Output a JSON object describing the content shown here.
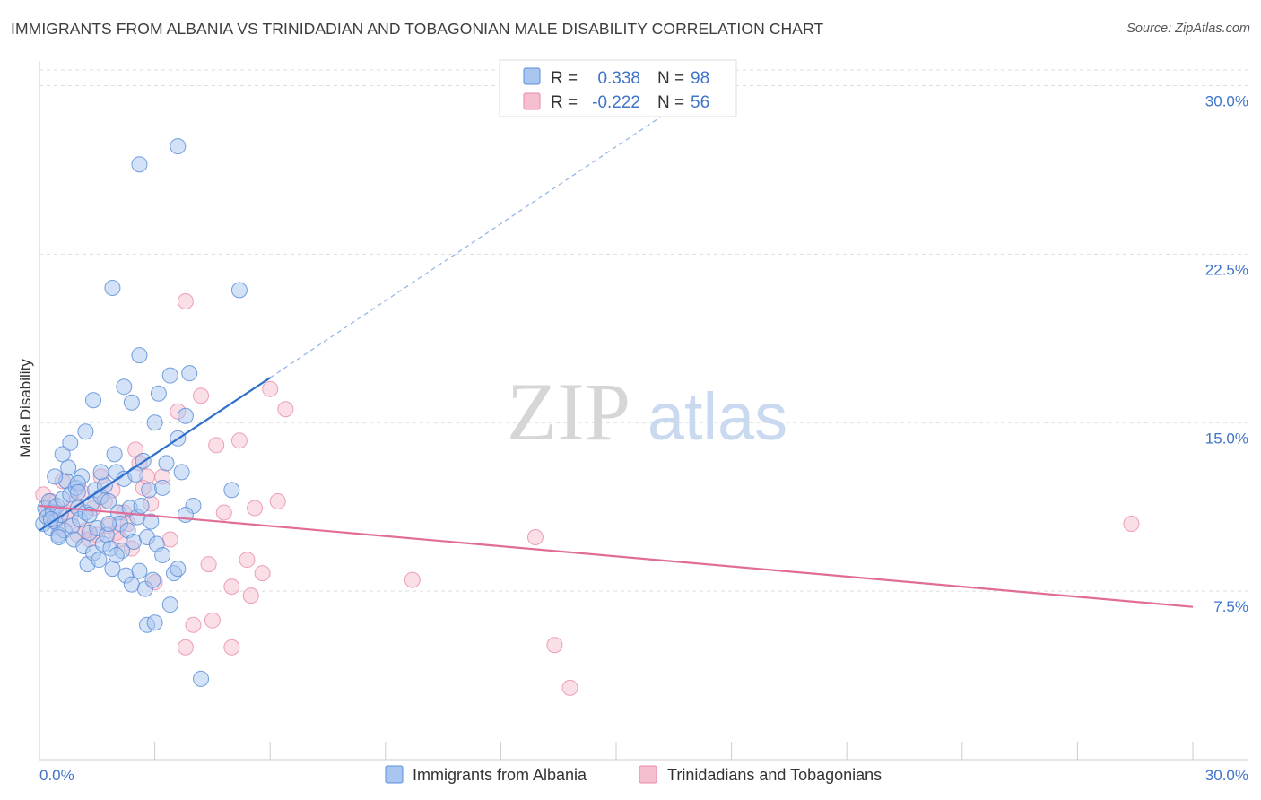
{
  "title": "IMMIGRANTS FROM ALBANIA VS TRINIDADIAN AND TOBAGONIAN MALE DISABILITY CORRELATION CHART",
  "source": "Source: ZipAtlas.com",
  "watermark": {
    "zip": "ZIP",
    "atlas": "atlas"
  },
  "colors": {
    "blue_fill": "#a9c6f0",
    "blue_stroke": "#5b8fd8",
    "blue_line": "#2f6fcb",
    "pink_fill": "#f6bfd0",
    "pink_stroke": "#e88aa8",
    "pink_line": "#e06c97",
    "grid": "#dddddd",
    "tick_label": "#3f74c9"
  },
  "stats_legend": [
    {
      "r_label": "R =",
      "r_value": "0.338",
      "n_label": "N =",
      "n_value": "98"
    },
    {
      "r_label": "R =",
      "r_value": "-0.222",
      "n_label": "N =",
      "n_value": "56"
    }
  ],
  "chart_data": {
    "type": "scatter",
    "title": "IMMIGRANTS FROM ALBANIA VS TRINIDADIAN AND TOBAGONIAN MALE DISABILITY CORRELATION CHART",
    "xlabel": "",
    "ylabel": "Male Disability",
    "xlim": [
      0,
      30
    ],
    "ylim": [
      0,
      30.7
    ],
    "x_tick_labels": [
      "0.0%",
      "30.0%"
    ],
    "y_ticks": [
      7.5,
      15.0,
      22.5,
      30.0
    ],
    "y_tick_labels": [
      "7.5%",
      "15.0%",
      "22.5%",
      "30.0%"
    ],
    "grid": true,
    "legend_position": "bottom",
    "series": [
      {
        "name": "Immigrants from Albania",
        "r": 0.338,
        "n": 98,
        "trend": {
          "x": [
            0,
            6.0
          ],
          "y": [
            10.2,
            17.0
          ],
          "dashed_to": [
            16.5,
            29.0
          ]
        },
        "points": [
          [
            0.1,
            10.5
          ],
          [
            0.15,
            11.2
          ],
          [
            0.2,
            10.8
          ],
          [
            0.25,
            11.5
          ],
          [
            0.3,
            10.3
          ],
          [
            0.35,
            11.0
          ],
          [
            0.4,
            10.6
          ],
          [
            0.45,
            11.3
          ],
          [
            0.5,
            10.0
          ],
          [
            0.55,
            10.9
          ],
          [
            0.6,
            11.6
          ],
          [
            0.65,
            10.2
          ],
          [
            0.7,
            12.4
          ],
          [
            0.75,
            13.0
          ],
          [
            0.8,
            11.8
          ],
          [
            0.85,
            10.4
          ],
          [
            0.9,
            9.8
          ],
          [
            0.95,
            12.1
          ],
          [
            1.0,
            11.2
          ],
          [
            1.05,
            10.7
          ],
          [
            1.1,
            12.6
          ],
          [
            1.15,
            9.5
          ],
          [
            1.2,
            11.0
          ],
          [
            1.25,
            8.7
          ],
          [
            1.3,
            10.1
          ],
          [
            1.35,
            11.4
          ],
          [
            1.4,
            9.2
          ],
          [
            1.45,
            12.0
          ],
          [
            1.5,
            10.3
          ],
          [
            1.55,
            8.9
          ],
          [
            1.6,
            11.7
          ],
          [
            1.65,
            9.6
          ],
          [
            1.7,
            12.2
          ],
          [
            1.75,
            10.0
          ],
          [
            1.8,
            11.5
          ],
          [
            1.85,
            9.4
          ],
          [
            1.9,
            8.5
          ],
          [
            1.95,
            13.6
          ],
          [
            2.0,
            12.8
          ],
          [
            2.05,
            11.0
          ],
          [
            2.1,
            10.5
          ],
          [
            2.15,
            9.3
          ],
          [
            2.2,
            12.5
          ],
          [
            2.25,
            8.2
          ],
          [
            2.3,
            10.2
          ],
          [
            2.35,
            11.2
          ],
          [
            2.4,
            7.8
          ],
          [
            2.45,
            9.7
          ],
          [
            2.5,
            12.7
          ],
          [
            2.55,
            10.8
          ],
          [
            2.6,
            8.4
          ],
          [
            2.65,
            11.3
          ],
          [
            2.7,
            13.3
          ],
          [
            2.75,
            7.6
          ],
          [
            2.8,
            9.9
          ],
          [
            2.85,
            12.0
          ],
          [
            2.9,
            10.6
          ],
          [
            2.95,
            8.0
          ],
          [
            3.0,
            15.0
          ],
          [
            3.05,
            9.6
          ],
          [
            3.1,
            16.3
          ],
          [
            3.2,
            12.1
          ],
          [
            3.3,
            13.2
          ],
          [
            3.4,
            17.1
          ],
          [
            3.5,
            8.3
          ],
          [
            3.6,
            14.3
          ],
          [
            3.7,
            12.8
          ],
          [
            3.8,
            15.3
          ],
          [
            3.9,
            17.2
          ],
          [
            4.0,
            11.3
          ],
          [
            0.4,
            12.6
          ],
          [
            0.6,
            13.6
          ],
          [
            0.8,
            14.1
          ],
          [
            1.0,
            12.3
          ],
          [
            1.2,
            14.6
          ],
          [
            1.4,
            16.0
          ],
          [
            1.6,
            12.8
          ],
          [
            1.8,
            10.5
          ],
          [
            2.0,
            9.1
          ],
          [
            2.2,
            16.6
          ],
          [
            2.4,
            15.9
          ],
          [
            2.6,
            18.0
          ],
          [
            2.8,
            6.0
          ],
          [
            3.0,
            6.1
          ],
          [
            3.2,
            9.1
          ],
          [
            3.4,
            6.9
          ],
          [
            3.6,
            8.5
          ],
          [
            3.8,
            10.9
          ],
          [
            1.9,
            21.0
          ],
          [
            2.6,
            26.5
          ],
          [
            3.6,
            27.3
          ],
          [
            5.2,
            20.9
          ],
          [
            4.2,
            3.6
          ],
          [
            5.0,
            12.0
          ],
          [
            1.0,
            11.9
          ],
          [
            0.3,
            10.7
          ],
          [
            0.5,
            9.9
          ],
          [
            1.3,
            10.9
          ]
        ]
      },
      {
        "name": "Trinidadians and Tobagonians",
        "r": -0.222,
        "n": 56,
        "trend": {
          "x": [
            0,
            30.0
          ],
          "y": [
            11.3,
            6.8
          ]
        },
        "points": [
          [
            0.1,
            11.8
          ],
          [
            0.2,
            11.0
          ],
          [
            0.3,
            11.5
          ],
          [
            0.4,
            11.2
          ],
          [
            0.5,
            10.4
          ],
          [
            0.6,
            12.4
          ],
          [
            0.7,
            11.0
          ],
          [
            0.8,
            10.7
          ],
          [
            0.9,
            11.4
          ],
          [
            1.0,
            10.0
          ],
          [
            1.1,
            11.9
          ],
          [
            1.2,
            10.2
          ],
          [
            1.3,
            9.8
          ],
          [
            1.4,
            11.2
          ],
          [
            1.5,
            10.0
          ],
          [
            1.6,
            12.6
          ],
          [
            1.7,
            11.5
          ],
          [
            1.8,
            10.4
          ],
          [
            1.9,
            12.0
          ],
          [
            2.0,
            10.1
          ],
          [
            2.1,
            9.8
          ],
          [
            2.2,
            11.0
          ],
          [
            2.3,
            10.5
          ],
          [
            2.4,
            9.4
          ],
          [
            2.5,
            13.8
          ],
          [
            2.6,
            13.2
          ],
          [
            2.7,
            12.1
          ],
          [
            2.8,
            12.6
          ],
          [
            2.9,
            11.4
          ],
          [
            3.0,
            7.9
          ],
          [
            3.2,
            12.6
          ],
          [
            3.4,
            9.8
          ],
          [
            3.6,
            15.5
          ],
          [
            3.8,
            5.0
          ],
          [
            4.0,
            6.0
          ],
          [
            4.2,
            16.2
          ],
          [
            4.4,
            8.7
          ],
          [
            4.6,
            14.0
          ],
          [
            4.8,
            11.0
          ],
          [
            5.0,
            7.7
          ],
          [
            5.2,
            14.2
          ],
          [
            5.4,
            8.9
          ],
          [
            5.6,
            11.2
          ],
          [
            5.8,
            8.3
          ],
          [
            6.0,
            16.5
          ],
          [
            6.2,
            11.5
          ],
          [
            6.4,
            15.6
          ],
          [
            3.8,
            20.4
          ],
          [
            4.5,
            6.2
          ],
          [
            5.0,
            5.0
          ],
          [
            5.5,
            7.3
          ],
          [
            9.7,
            8.0
          ],
          [
            12.9,
            9.9
          ],
          [
            13.4,
            5.1
          ],
          [
            13.8,
            3.2
          ],
          [
            28.4,
            10.5
          ]
        ]
      }
    ]
  }
}
